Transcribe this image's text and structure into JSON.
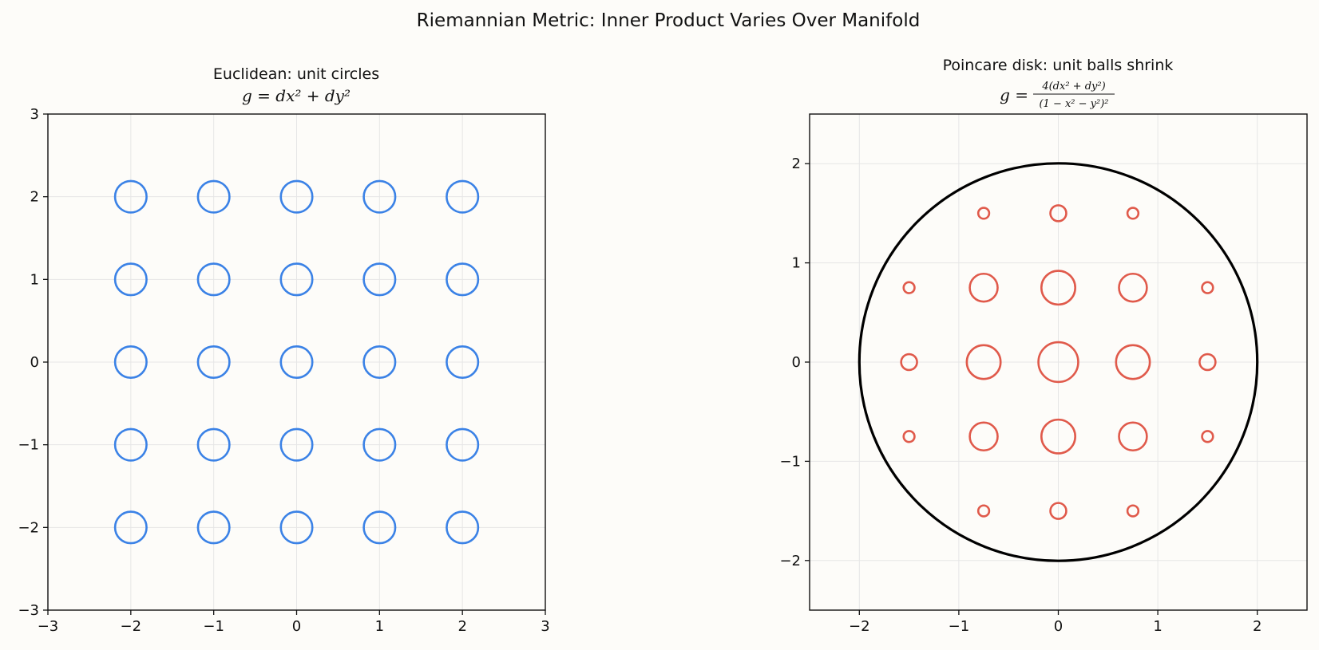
{
  "figure": {
    "title": "Riemannian Metric: Inner Product Varies Over Manifold"
  },
  "chart_data": [
    {
      "type": "scatter",
      "title": "Euclidean: unit circles",
      "formula": "g = dx² + dy²",
      "xlabel": "",
      "ylabel": "",
      "xlim": [
        -3,
        3
      ],
      "ylim": [
        -3,
        3
      ],
      "xticks": [
        -3,
        -2,
        -1,
        0,
        1,
        2,
        3
      ],
      "yticks": [
        -3,
        -2,
        -1,
        0,
        1,
        2,
        3
      ],
      "xtick_labels": [
        "−3",
        "−2",
        "−1",
        "0",
        "1",
        "2",
        "3"
      ],
      "ytick_labels": [
        "−3",
        "−2",
        "−1",
        "0",
        "1",
        "2",
        "3"
      ],
      "grid": true,
      "color": "#3b82e6",
      "circles": [
        {
          "x": -2,
          "y": 2,
          "r": 0.19
        },
        {
          "x": -1,
          "y": 2,
          "r": 0.19
        },
        {
          "x": 0,
          "y": 2,
          "r": 0.19
        },
        {
          "x": 1,
          "y": 2,
          "r": 0.19
        },
        {
          "x": 2,
          "y": 2,
          "r": 0.19
        },
        {
          "x": -2,
          "y": 1,
          "r": 0.19
        },
        {
          "x": -1,
          "y": 1,
          "r": 0.19
        },
        {
          "x": 0,
          "y": 1,
          "r": 0.19
        },
        {
          "x": 1,
          "y": 1,
          "r": 0.19
        },
        {
          "x": 2,
          "y": 1,
          "r": 0.19
        },
        {
          "x": -2,
          "y": 0,
          "r": 0.19
        },
        {
          "x": -1,
          "y": 0,
          "r": 0.19
        },
        {
          "x": 0,
          "y": 0,
          "r": 0.19
        },
        {
          "x": 1,
          "y": 0,
          "r": 0.19
        },
        {
          "x": 2,
          "y": 0,
          "r": 0.19
        },
        {
          "x": -2,
          "y": -1,
          "r": 0.19
        },
        {
          "x": -1,
          "y": -1,
          "r": 0.19
        },
        {
          "x": 0,
          "y": -1,
          "r": 0.19
        },
        {
          "x": 1,
          "y": -1,
          "r": 0.19
        },
        {
          "x": 2,
          "y": -1,
          "r": 0.19
        },
        {
          "x": -2,
          "y": -2,
          "r": 0.19
        },
        {
          "x": -1,
          "y": -2,
          "r": 0.19
        },
        {
          "x": 0,
          "y": -2,
          "r": 0.19
        },
        {
          "x": 1,
          "y": -2,
          "r": 0.19
        },
        {
          "x": 2,
          "y": -2,
          "r": 0.19
        }
      ]
    },
    {
      "type": "scatter",
      "title": "Poincare disk: unit balls shrink",
      "formula_prefix": "g =",
      "formula_numerator": "4(dx² + dy²)",
      "formula_denominator": "(1 − x² − y²)²",
      "xlabel": "",
      "ylabel": "",
      "xlim": [
        -2.5,
        2.5
      ],
      "ylim": [
        -2.5,
        2.5
      ],
      "xticks": [
        -2,
        -1,
        0,
        1,
        2
      ],
      "yticks": [
        -2,
        -1,
        0,
        1,
        2
      ],
      "xtick_labels": [
        "−2",
        "−1",
        "0",
        "1",
        "2"
      ],
      "ytick_labels": [
        "−2",
        "−1",
        "0",
        "1",
        "2"
      ],
      "grid": true,
      "color": "#e05a4b",
      "boundary": {
        "cx": 0,
        "cy": 0,
        "r": 2,
        "color": "#000000"
      },
      "circles": [
        {
          "x": -0.75,
          "y": 1.5,
          "r": 0.055
        },
        {
          "x": 0,
          "y": 1.5,
          "r": 0.08
        },
        {
          "x": 0.75,
          "y": 1.5,
          "r": 0.055
        },
        {
          "x": -1.5,
          "y": 0.75,
          "r": 0.055
        },
        {
          "x": -0.75,
          "y": 0.75,
          "r": 0.14
        },
        {
          "x": 0,
          "y": 0.75,
          "r": 0.17
        },
        {
          "x": 0.75,
          "y": 0.75,
          "r": 0.14
        },
        {
          "x": 1.5,
          "y": 0.75,
          "r": 0.055
        },
        {
          "x": -1.5,
          "y": 0,
          "r": 0.08
        },
        {
          "x": -0.75,
          "y": 0,
          "r": 0.17
        },
        {
          "x": 0,
          "y": 0,
          "r": 0.2
        },
        {
          "x": 0.75,
          "y": 0,
          "r": 0.17
        },
        {
          "x": 1.5,
          "y": 0,
          "r": 0.08
        },
        {
          "x": -1.5,
          "y": -0.75,
          "r": 0.055
        },
        {
          "x": -0.75,
          "y": -0.75,
          "r": 0.14
        },
        {
          "x": 0,
          "y": -0.75,
          "r": 0.17
        },
        {
          "x": 0.75,
          "y": -0.75,
          "r": 0.14
        },
        {
          "x": 1.5,
          "y": -0.75,
          "r": 0.055
        },
        {
          "x": -0.75,
          "y": -1.5,
          "r": 0.055
        },
        {
          "x": 0,
          "y": -1.5,
          "r": 0.08
        },
        {
          "x": 0.75,
          "y": -1.5,
          "r": 0.055
        }
      ]
    }
  ]
}
